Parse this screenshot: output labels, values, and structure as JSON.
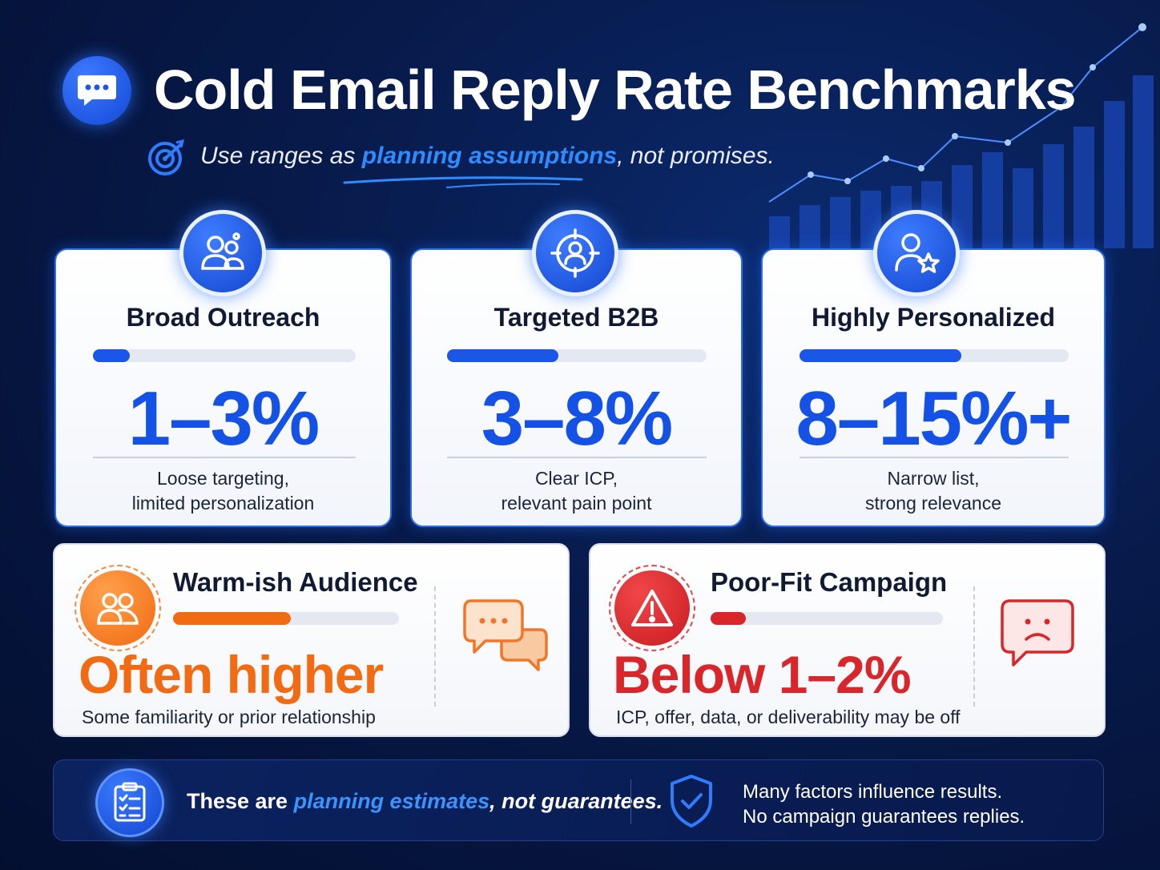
{
  "header": {
    "icon": "chat-bubble-icon",
    "title": "Cold Email Reply Rate Benchmarks",
    "subtitle_prefix": "Use ranges as ",
    "subtitle_highlight": "planning assumptions",
    "subtitle_suffix": ", not promises.",
    "subtitle_icon": "target-icon"
  },
  "tiers": [
    {
      "icon": "users-group-icon",
      "title": "Broad Outreach",
      "value": "1–3%",
      "bar_level": 0.14,
      "desc_line1": "Loose targeting,",
      "desc_line2": "limited personalization"
    },
    {
      "icon": "target-user-icon",
      "title": "Targeted B2B",
      "value": "3–8%",
      "bar_level": 0.43,
      "desc_line1": "Clear ICP,",
      "desc_line2": "relevant pain point"
    },
    {
      "icon": "user-star-icon",
      "title": "Highly Personalized",
      "value": "8–15%+",
      "bar_level": 0.6,
      "desc_line1": "Narrow list,",
      "desc_line2": "strong relevance"
    }
  ],
  "warm": {
    "icon": "users-icon",
    "title": "Warm-ish Audience",
    "value": "Often higher",
    "bar_level": 0.52,
    "desc": "Some familiarity or prior relationship",
    "side_icon": "chat-bubbles-icon",
    "color": "#f26a12"
  },
  "poor": {
    "icon": "warning-icon",
    "title": "Poor-Fit Campaign",
    "value": "Below 1–2%",
    "bar_level": 0.15,
    "desc": "ICP, offer, data, or deliverability may be off",
    "side_icon": "sad-face-bubble-icon",
    "color": "#d8262a"
  },
  "footer": {
    "icon": "checklist-icon",
    "left_prefix": "These are ",
    "left_highlight": "planning estimates",
    "left_suffix": ", not guarantees.",
    "shield_icon": "shield-check-icon",
    "right_line1": "Many factors influence results.",
    "right_line2": "No campaign guarantees replies."
  },
  "colors": {
    "accent": "#1452e6",
    "highlight": "#2f8cff",
    "warm": "#f26a12",
    "poor": "#d8262a"
  }
}
